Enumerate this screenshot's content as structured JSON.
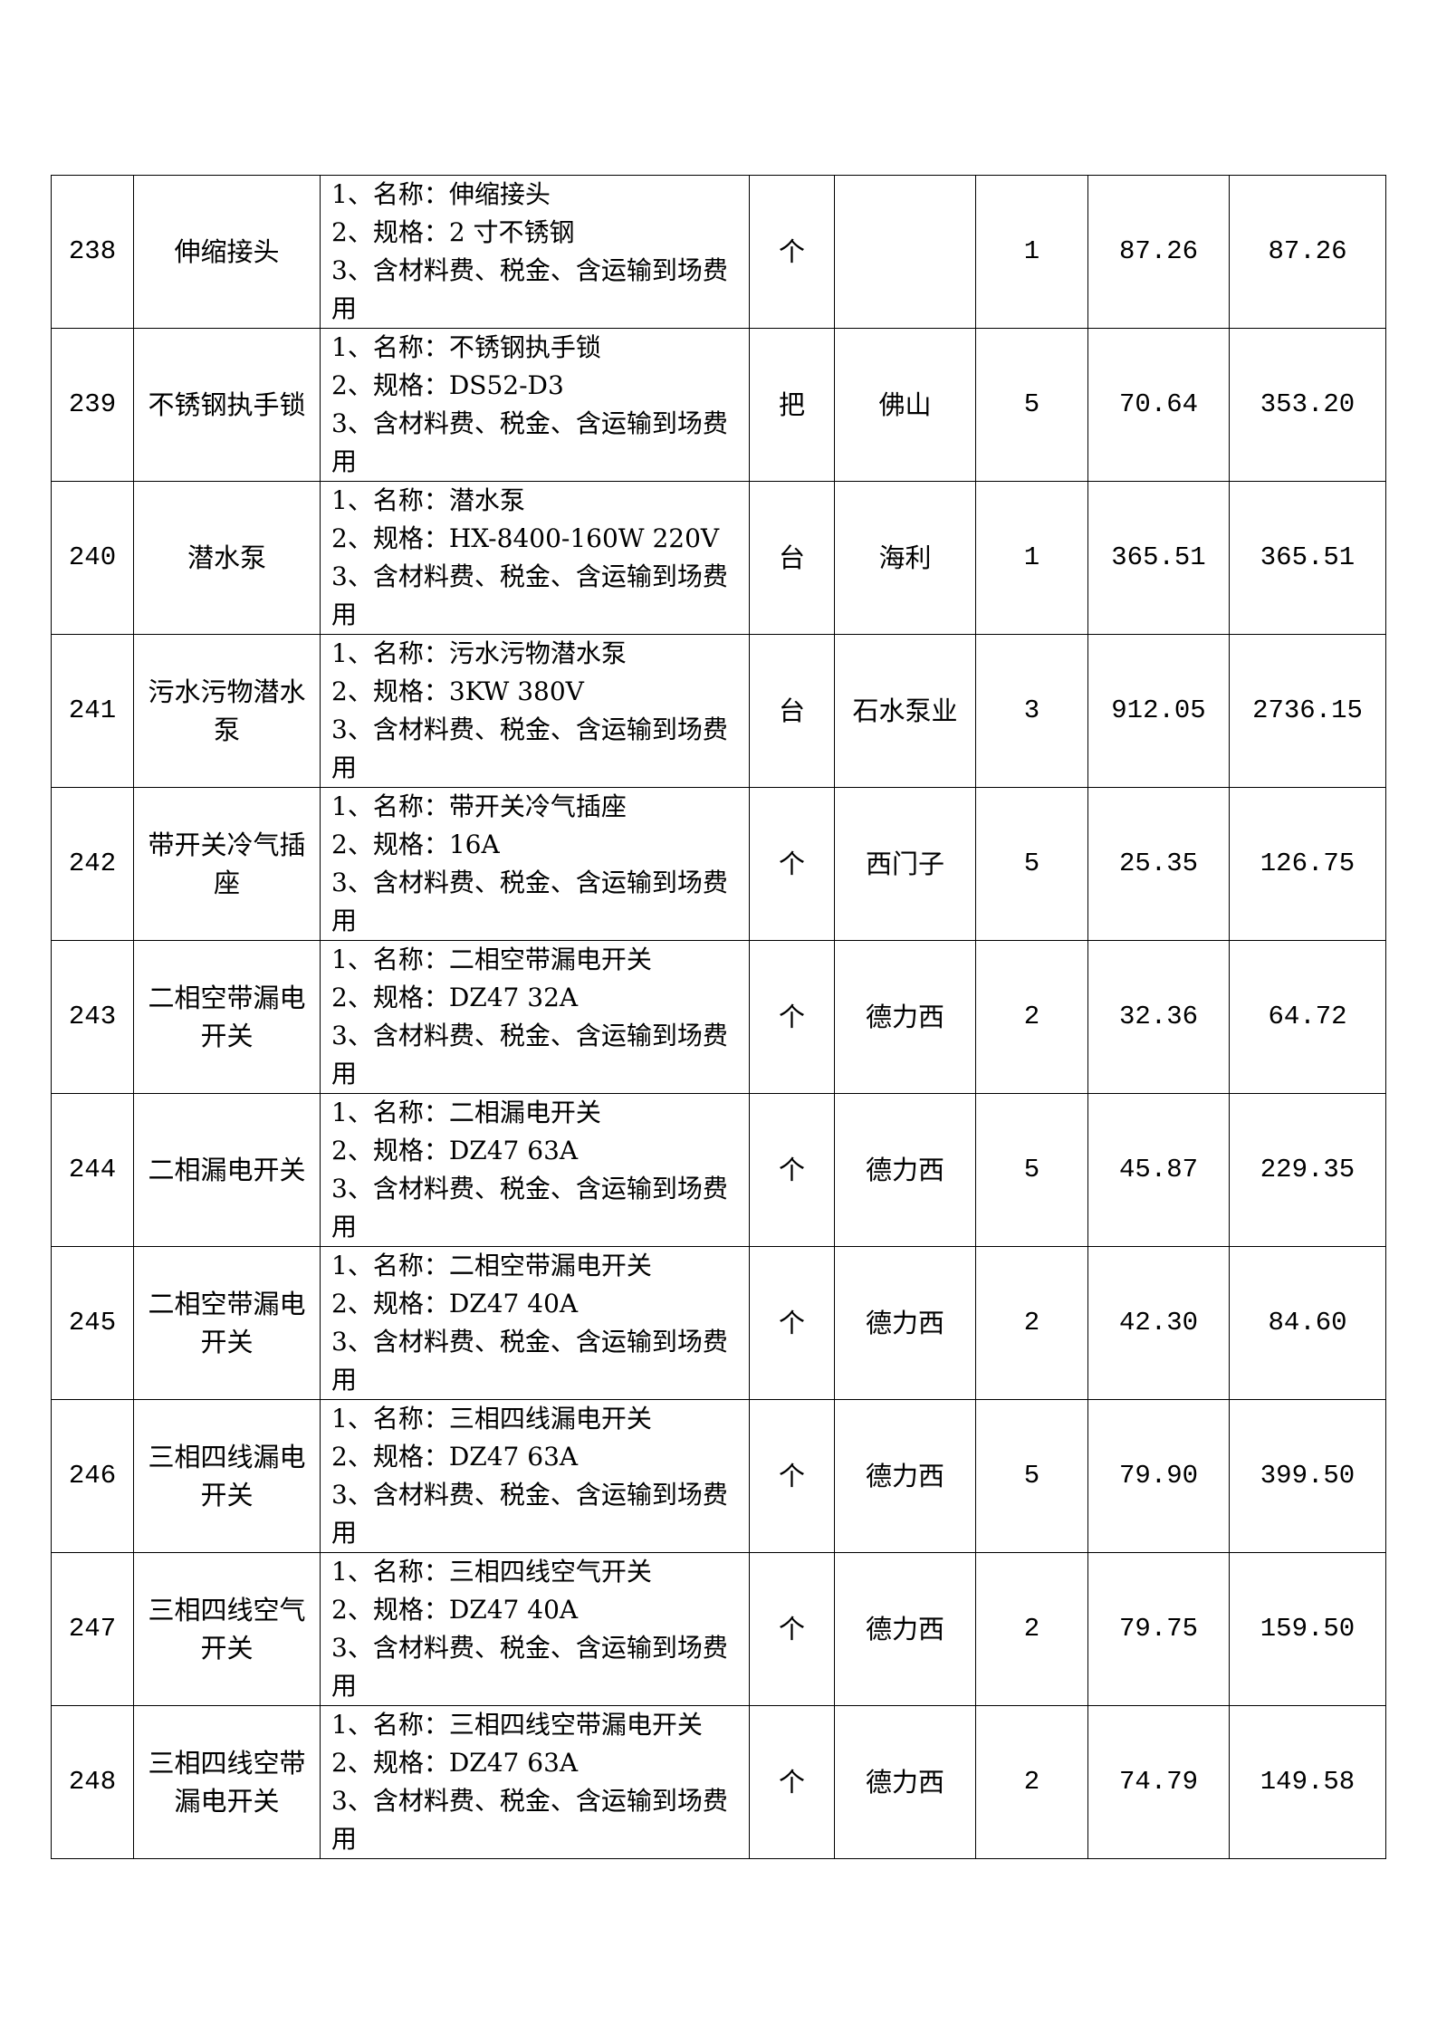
{
  "rows": [
    {
      "no": "238",
      "name": "伸缩接头",
      "desc": [
        "1、名称：伸缩接头",
        "2、规格：2 寸不锈钢",
        "3、含材料费、税金、含运输到场费用"
      ],
      "unit": "个",
      "brand": "",
      "qty": "1",
      "price": "87.26",
      "total": "87.26"
    },
    {
      "no": "239",
      "name": "不锈钢执手锁",
      "desc": [
        "1、名称：不锈钢执手锁",
        "2、规格：DS52-D3",
        "3、含材料费、税金、含运输到场费用"
      ],
      "unit": "把",
      "brand": "佛山",
      "qty": "5",
      "price": "70.64",
      "total": "353.20"
    },
    {
      "no": "240",
      "name": "潜水泵",
      "desc": [
        "1、名称：潜水泵",
        "2、规格：HX-8400-160W 220V",
        "3、含材料费、税金、含运输到场费用"
      ],
      "unit": "台",
      "brand": "海利",
      "qty": "1",
      "price": "365.51",
      "total": "365.51"
    },
    {
      "no": "241",
      "name": "污水污物潜水泵",
      "desc": [
        "1、名称：污水污物潜水泵",
        "2、规格：3KW 380V",
        "3、含材料费、税金、含运输到场费用"
      ],
      "unit": "台",
      "brand": "石水泵业",
      "qty": "3",
      "price": "912.05",
      "total": "2736.15"
    },
    {
      "no": "242",
      "name": "带开关冷气插座",
      "desc": [
        "1、名称：带开关冷气插座",
        "2、规格：16A",
        "3、含材料费、税金、含运输到场费用"
      ],
      "unit": "个",
      "brand": "西门子",
      "qty": "5",
      "price": "25.35",
      "total": "126.75"
    },
    {
      "no": "243",
      "name": "二相空带漏电开关",
      "desc": [
        "1、名称：二相空带漏电开关",
        "2、规格：DZ47 32A",
        "3、含材料费、税金、含运输到场费用"
      ],
      "unit": "个",
      "brand": "德力西",
      "qty": "2",
      "price": "32.36",
      "total": "64.72"
    },
    {
      "no": "244",
      "name": "二相漏电开关",
      "desc": [
        "1、名称：二相漏电开关",
        "2、规格：DZ47 63A",
        "3、含材料费、税金、含运输到场费用"
      ],
      "unit": "个",
      "brand": "德力西",
      "qty": "5",
      "price": "45.87",
      "total": "229.35"
    },
    {
      "no": "245",
      "name": "二相空带漏电开关",
      "desc": [
        "1、名称：二相空带漏电开关",
        "2、规格：DZ47 40A",
        "3、含材料费、税金、含运输到场费用"
      ],
      "unit": "个",
      "brand": "德力西",
      "qty": "2",
      "price": "42.30",
      "total": "84.60"
    },
    {
      "no": "246",
      "name": "三相四线漏电开关",
      "desc": [
        "1、名称：三相四线漏电开关",
        "2、规格：DZ47 63A",
        "3、含材料费、税金、含运输到场费用"
      ],
      "unit": "个",
      "brand": "德力西",
      "qty": "5",
      "price": "79.90",
      "total": "399.50"
    },
    {
      "no": "247",
      "name": "三相四线空气开关",
      "desc": [
        "1、名称：三相四线空气开关",
        "2、规格：DZ47 40A",
        "3、含材料费、税金、含运输到场费用"
      ],
      "unit": "个",
      "brand": "德力西",
      "qty": "2",
      "price": "79.75",
      "total": "159.50"
    },
    {
      "no": "248",
      "name": "三相四线空带漏电开关",
      "desc": [
        "1、名称：三相四线空带漏电开关",
        "2、规格：DZ47 63A",
        "3、含材料费、税金、含运输到场费用"
      ],
      "unit": "个",
      "brand": "德力西",
      "qty": "2",
      "price": "74.79",
      "total": "149.58"
    }
  ]
}
